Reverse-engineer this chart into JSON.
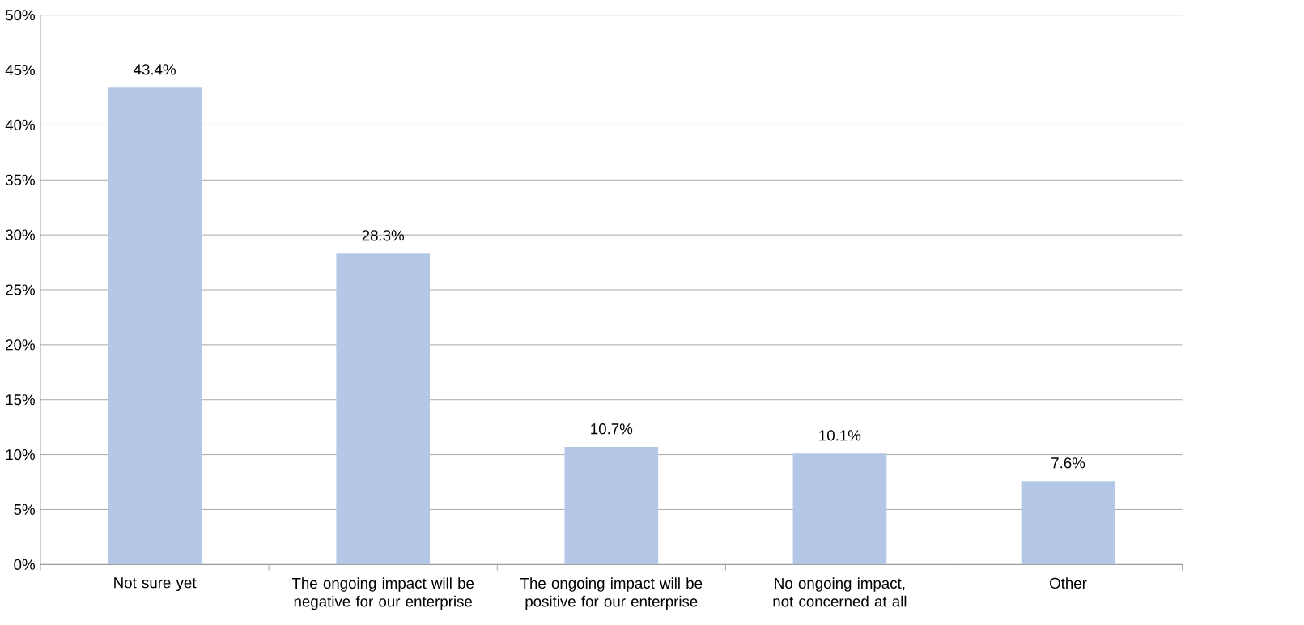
{
  "chart_data": {
    "type": "bar",
    "categories": [
      "Not sure yet",
      "The ongoing impact will be negative for our enterprise",
      "The ongoing impact will be positive for our enterprise",
      "No ongoing impact, not concerned at all",
      "Other"
    ],
    "values": [
      43.4,
      28.3,
      10.7,
      10.1,
      7.6
    ],
    "value_labels": [
      "43.4%",
      "28.3%",
      "10.7%",
      "10.1%",
      "7.6%"
    ],
    "color": "#b4c7e7",
    "ylim": [
      0,
      50
    ],
    "yticks": [
      {
        "value": 0,
        "label": "0%"
      },
      {
        "value": 5,
        "label": "5%"
      },
      {
        "value": 10,
        "label": "10%"
      },
      {
        "value": 15,
        "label": "15%"
      },
      {
        "value": 20,
        "label": "20%"
      },
      {
        "value": 25,
        "label": "25%"
      },
      {
        "value": 30,
        "label": "30%"
      },
      {
        "value": 35,
        "label": "35%"
      },
      {
        "value": 40,
        "label": "40%"
      },
      {
        "value": 45,
        "label": "45%"
      },
      {
        "value": 50,
        "label": "50%"
      }
    ],
    "grid": "y"
  }
}
